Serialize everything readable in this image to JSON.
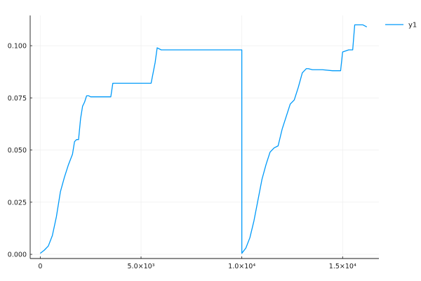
{
  "chart_data": {
    "type": "line",
    "title": "",
    "xlabel": "",
    "ylabel": "",
    "xlim": [
      -500,
      16800
    ],
    "ylim": [
      -0.002,
      0.1145
    ],
    "grid": true,
    "legend_position": "top-right",
    "x_ticks": [
      {
        "value": 0,
        "label": "0"
      },
      {
        "value": 5000,
        "label": "5.0×10³"
      },
      {
        "value": 10000,
        "label": "1.0×10⁴"
      },
      {
        "value": 15000,
        "label": "1.5×10⁴"
      }
    ],
    "y_ticks": [
      {
        "value": 0.0,
        "label": "0.000"
      },
      {
        "value": 0.025,
        "label": "0.025"
      },
      {
        "value": 0.05,
        "label": "0.050"
      },
      {
        "value": 0.075,
        "label": "0.075"
      },
      {
        "value": 0.1,
        "label": "0.100"
      }
    ],
    "series": [
      {
        "name": "y1",
        "color": "#009af9",
        "x": [
          0,
          200,
          400,
          600,
          800,
          1000,
          1200,
          1400,
          1600,
          1700,
          1800,
          1900,
          2000,
          2100,
          2200,
          2300,
          2400,
          2500,
          3000,
          3500,
          3600,
          4000,
          5000,
          5500,
          5600,
          5700,
          5800,
          6000,
          7000,
          8000,
          9000,
          9900,
          9999,
          10000,
          10200,
          10400,
          10600,
          10800,
          11000,
          11200,
          11400,
          11600,
          11800,
          12000,
          12200,
          12400,
          12600,
          12800,
          13000,
          13200,
          13300,
          13500,
          14000,
          14500,
          14900,
          15000,
          15300,
          15500,
          15600,
          15700,
          16000,
          16200
        ],
        "y": [
          0.0005,
          0.002,
          0.004,
          0.009,
          0.018,
          0.03,
          0.037,
          0.043,
          0.048,
          0.054,
          0.055,
          0.055,
          0.065,
          0.071,
          0.073,
          0.076,
          0.076,
          0.0755,
          0.0755,
          0.0755,
          0.082,
          0.082,
          0.082,
          0.082,
          0.087,
          0.092,
          0.099,
          0.098,
          0.098,
          0.098,
          0.098,
          0.098,
          0.098,
          0.0005,
          0.003,
          0.008,
          0.016,
          0.026,
          0.036,
          0.043,
          0.049,
          0.051,
          0.052,
          0.06,
          0.066,
          0.072,
          0.074,
          0.08,
          0.087,
          0.089,
          0.089,
          0.0885,
          0.0885,
          0.088,
          0.088,
          0.097,
          0.098,
          0.098,
          0.11,
          0.11,
          0.11,
          0.109
        ]
      }
    ]
  }
}
